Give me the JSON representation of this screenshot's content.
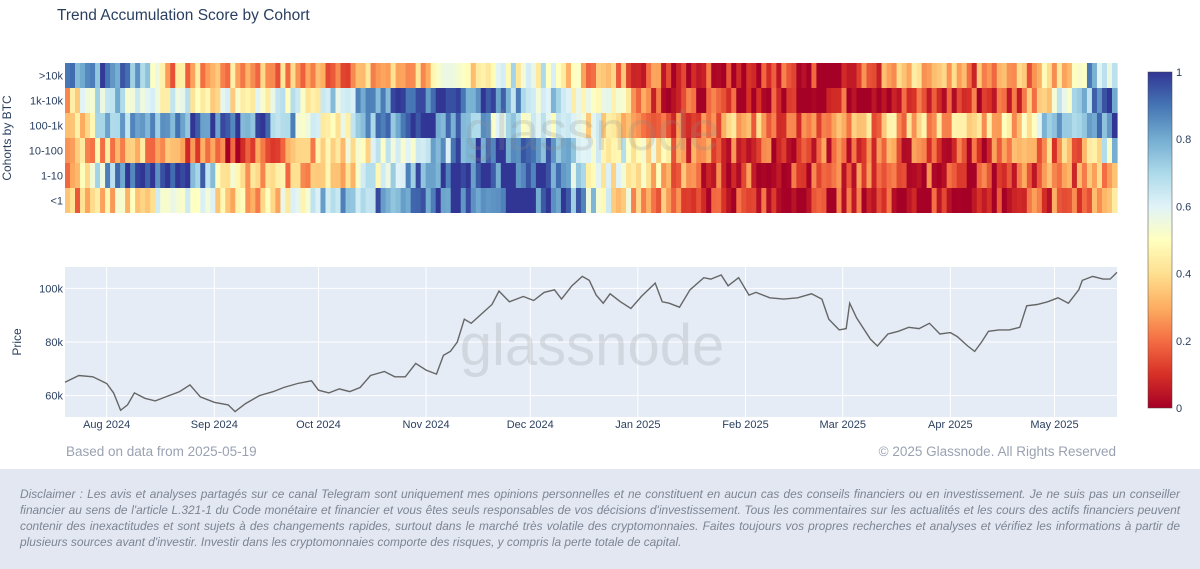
{
  "title": "Trend Accumulation Score by Cohort",
  "watermark": "glassnode",
  "footer": {
    "left": "Based on data from 2025-05-19",
    "right": "© 2025 Glassnode. All Rights Reserved"
  },
  "disclaimer": "Disclaimer : Les avis et analyses partagés sur ce canal Telegram sont uniquement mes opinions personnelles et ne constituent en aucun cas des conseils financiers ou en investissement. Je ne suis pas un conseiller financier au sens de l'article L.321-1 du Code monétaire et financier et vous êtes seuls responsables de vos décisions d'investissement. Tous les commentaires sur les actualités et les cours des actifs financiers peuvent contenir des inexactitudes et sont sujets à des changements rapides, surtout dans le marché très volatile des cryptomonnaies. Faites toujours vos propres recherches et analyses et vérifiez les informations à partir de plusieurs sources avant d'investir. Investir dans les cryptomonnaies comporte des risques, y compris la perte totale de capital.",
  "colors": {
    "heat_low": "#a50026",
    "heat_mid": "#ffffbf",
    "heat_high": "#313695",
    "price_line": "#666666",
    "plot_bg": "#e5ecf6"
  },
  "chart_data": [
    {
      "type": "heatmap",
      "ylabel": "Cohorts by BTC",
      "categories": [
        ">10k",
        "1k-10k",
        "100-1k",
        "10-100",
        "1-10",
        "<1"
      ],
      "x_range": [
        "2024-07-20",
        "2025-05-19"
      ],
      "segments_note": "score keyframes per cohort as [date, score]",
      "series": [
        {
          "name": ">10k",
          "keyframes": [
            [
              "2024-07-20",
              0.9
            ],
            [
              "2024-08-10",
              0.85
            ],
            [
              "2024-08-20",
              0.3
            ],
            [
              "2024-09-15",
              0.3
            ],
            [
              "2024-10-01",
              0.25
            ],
            [
              "2024-10-25",
              0.3
            ],
            [
              "2024-11-10",
              0.45
            ],
            [
              "2024-12-01",
              0.6
            ],
            [
              "2024-12-20",
              0.3
            ],
            [
              "2025-01-10",
              0.15
            ],
            [
              "2025-02-10",
              0.1
            ],
            [
              "2025-03-01",
              0.05
            ],
            [
              "2025-03-20",
              0.3
            ],
            [
              "2025-04-10",
              0.2
            ],
            [
              "2025-04-25",
              0.3
            ],
            [
              "2025-05-05",
              0.4
            ],
            [
              "2025-05-12",
              0.8
            ],
            [
              "2025-05-19",
              0.6
            ]
          ]
        },
        {
          "name": "1k-10k",
          "keyframes": [
            [
              "2024-07-20",
              0.3
            ],
            [
              "2024-08-01",
              0.7
            ],
            [
              "2024-09-01",
              0.5
            ],
            [
              "2024-10-01",
              0.55
            ],
            [
              "2024-10-25",
              0.95
            ],
            [
              "2024-11-10",
              0.95
            ],
            [
              "2024-11-25",
              0.8
            ],
            [
              "2024-12-10",
              0.6
            ],
            [
              "2024-12-25",
              0.55
            ],
            [
              "2025-01-10",
              0.1
            ],
            [
              "2025-02-10",
              0.05
            ],
            [
              "2025-03-10",
              0.1
            ],
            [
              "2025-04-01",
              0.1
            ],
            [
              "2025-04-20",
              0.15
            ],
            [
              "2025-05-01",
              0.55
            ],
            [
              "2025-05-10",
              0.8
            ],
            [
              "2025-05-19",
              0.95
            ]
          ]
        },
        {
          "name": "100-1k",
          "keyframes": [
            [
              "2024-07-20",
              0.15
            ],
            [
              "2024-08-01",
              0.7
            ],
            [
              "2024-08-20",
              0.9
            ],
            [
              "2024-09-15",
              0.9
            ],
            [
              "2024-10-05",
              0.5
            ],
            [
              "2024-10-25",
              0.95
            ],
            [
              "2024-11-10",
              0.85
            ],
            [
              "2024-11-25",
              0.6
            ],
            [
              "2024-12-10",
              0.55
            ],
            [
              "2024-12-25",
              0.45
            ],
            [
              "2025-01-10",
              0.2
            ],
            [
              "2025-02-01",
              0.3
            ],
            [
              "2025-02-20",
              0.15
            ],
            [
              "2025-03-10",
              0.3
            ],
            [
              "2025-04-01",
              0.35
            ],
            [
              "2025-04-20",
              0.4
            ],
            [
              "2025-05-01",
              0.75
            ],
            [
              "2025-05-19",
              0.95
            ]
          ]
        },
        {
          "name": "10-100",
          "keyframes": [
            [
              "2024-07-20",
              0.3
            ],
            [
              "2024-08-05",
              0.35
            ],
            [
              "2024-08-20",
              0.25
            ],
            [
              "2024-09-05",
              0.1
            ],
            [
              "2024-10-01",
              0.35
            ],
            [
              "2024-10-20",
              0.55
            ],
            [
              "2024-11-05",
              0.7
            ],
            [
              "2024-11-15",
              0.95
            ],
            [
              "2024-12-05",
              0.9
            ],
            [
              "2024-12-20",
              0.6
            ],
            [
              "2025-01-01",
              0.5
            ],
            [
              "2025-01-15",
              0.2
            ],
            [
              "2025-02-10",
              0.1
            ],
            [
              "2025-03-10",
              0.2
            ],
            [
              "2025-04-01",
              0.1
            ],
            [
              "2025-04-20",
              0.2
            ],
            [
              "2025-05-10",
              0.3
            ],
            [
              "2025-05-19",
              0.7
            ]
          ]
        },
        {
          "name": "1-10",
          "keyframes": [
            [
              "2024-07-20",
              0.3
            ],
            [
              "2024-08-05",
              0.9
            ],
            [
              "2024-08-25",
              0.95
            ],
            [
              "2024-09-10",
              0.3
            ],
            [
              "2024-10-05",
              0.35
            ],
            [
              "2024-10-20",
              0.65
            ],
            [
              "2024-11-05",
              0.95
            ],
            [
              "2024-12-05",
              0.95
            ],
            [
              "2024-12-20",
              0.5
            ],
            [
              "2025-01-05",
              0.4
            ],
            [
              "2025-01-20",
              0.15
            ],
            [
              "2025-02-20",
              0.1
            ],
            [
              "2025-03-20",
              0.15
            ],
            [
              "2025-04-10",
              0.1
            ],
            [
              "2025-05-01",
              0.2
            ],
            [
              "2025-05-19",
              0.3
            ]
          ]
        },
        {
          "name": "<1",
          "keyframes": [
            [
              "2024-07-20",
              0.25
            ],
            [
              "2024-08-05",
              0.45
            ],
            [
              "2024-08-25",
              0.5
            ],
            [
              "2024-09-15",
              0.35
            ],
            [
              "2024-10-05",
              0.75
            ],
            [
              "2024-10-25",
              0.85
            ],
            [
              "2024-11-05",
              0.95
            ],
            [
              "2024-12-10",
              0.95
            ],
            [
              "2024-12-25",
              0.5
            ],
            [
              "2025-01-10",
              0.2
            ],
            [
              "2025-02-10",
              0.05
            ],
            [
              "2025-03-10",
              0.1
            ],
            [
              "2025-04-10",
              0.05
            ],
            [
              "2025-05-01",
              0.15
            ],
            [
              "2025-05-19",
              0.35
            ]
          ]
        }
      ],
      "colorbar": {
        "ticks": [
          0,
          0.2,
          0.4,
          0.6,
          0.8,
          1
        ],
        "tick_labels": [
          "0",
          "0.2",
          "0.4",
          "0.6",
          "0.8",
          "1"
        ]
      }
    },
    {
      "type": "line",
      "ylabel": "Price",
      "ylim": [
        52000,
        108000
      ],
      "yticks": [
        60000,
        80000,
        100000
      ],
      "ytick_labels": [
        "60k",
        "80k",
        "100k"
      ],
      "x_range": [
        "2024-07-20",
        "2025-05-19"
      ],
      "x_ticks": [
        {
          "date": "2024-08-01",
          "label": "Aug 2024"
        },
        {
          "date": "2024-09-01",
          "label": "Sep 2024"
        },
        {
          "date": "2024-10-01",
          "label": "Oct 2024"
        },
        {
          "date": "2024-11-01",
          "label": "Nov 2024"
        },
        {
          "date": "2024-12-01",
          "label": "Dec 2024"
        },
        {
          "date": "2025-01-01",
          "label": "Jan 2025"
        },
        {
          "date": "2025-02-01",
          "label": "Feb 2025"
        },
        {
          "date": "2025-03-01",
          "label": "Mar 2025"
        },
        {
          "date": "2025-04-01",
          "label": "Apr 2025"
        },
        {
          "date": "2025-05-01",
          "label": "May 2025"
        }
      ],
      "points": [
        [
          "2024-07-20",
          65000
        ],
        [
          "2024-07-24",
          67500
        ],
        [
          "2024-07-28",
          67000
        ],
        [
          "2024-08-01",
          64500
        ],
        [
          "2024-08-03",
          61000
        ],
        [
          "2024-08-05",
          54500
        ],
        [
          "2024-08-07",
          56500
        ],
        [
          "2024-08-09",
          61000
        ],
        [
          "2024-08-12",
          59000
        ],
        [
          "2024-08-15",
          58000
        ],
        [
          "2024-08-18",
          59500
        ],
        [
          "2024-08-22",
          61500
        ],
        [
          "2024-08-25",
          64000
        ],
        [
          "2024-08-28",
          59500
        ],
        [
          "2024-09-01",
          57500
        ],
        [
          "2024-09-05",
          56500
        ],
        [
          "2024-09-07",
          54000
        ],
        [
          "2024-09-10",
          57000
        ],
        [
          "2024-09-14",
          60000
        ],
        [
          "2024-09-18",
          61500
        ],
        [
          "2024-09-21",
          63000
        ],
        [
          "2024-09-25",
          64500
        ],
        [
          "2024-09-29",
          65500
        ],
        [
          "2024-10-01",
          62000
        ],
        [
          "2024-10-04",
          61000
        ],
        [
          "2024-10-07",
          62500
        ],
        [
          "2024-10-10",
          61500
        ],
        [
          "2024-10-13",
          63000
        ],
        [
          "2024-10-16",
          67500
        ],
        [
          "2024-10-20",
          69000
        ],
        [
          "2024-10-23",
          67000
        ],
        [
          "2024-10-26",
          67000
        ],
        [
          "2024-10-29",
          72000
        ],
        [
          "2024-11-01",
          69500
        ],
        [
          "2024-11-04",
          68000
        ],
        [
          "2024-11-06",
          75000
        ],
        [
          "2024-11-08",
          76500
        ],
        [
          "2024-11-10",
          80000
        ],
        [
          "2024-11-12",
          88500
        ],
        [
          "2024-11-14",
          87000
        ],
        [
          "2024-11-17",
          90500
        ],
        [
          "2024-11-20",
          94000
        ],
        [
          "2024-11-22",
          99000
        ],
        [
          "2024-11-25",
          95000
        ],
        [
          "2024-11-27",
          96000
        ],
        [
          "2024-11-29",
          97000
        ],
        [
          "2024-12-02",
          95500
        ],
        [
          "2024-12-05",
          98500
        ],
        [
          "2024-12-08",
          99500
        ],
        [
          "2024-12-10",
          96000
        ],
        [
          "2024-12-13",
          101000
        ],
        [
          "2024-12-16",
          104500
        ],
        [
          "2024-12-18",
          103000
        ],
        [
          "2024-12-20",
          97500
        ],
        [
          "2024-12-22",
          94500
        ],
        [
          "2024-12-24",
          98000
        ],
        [
          "2024-12-27",
          95000
        ],
        [
          "2024-12-30",
          92500
        ],
        [
          "2025-01-02",
          97000
        ],
        [
          "2025-01-06",
          102000
        ],
        [
          "2025-01-08",
          95000
        ],
        [
          "2025-01-10",
          94500
        ],
        [
          "2025-01-13",
          93000
        ],
        [
          "2025-01-16",
          99500
        ],
        [
          "2025-01-20",
          104000
        ],
        [
          "2025-01-22",
          103500
        ],
        [
          "2025-01-25",
          105000
        ],
        [
          "2025-01-27",
          101000
        ],
        [
          "2025-01-30",
          104000
        ],
        [
          "2025-02-02",
          97500
        ],
        [
          "2025-02-04",
          98500
        ],
        [
          "2025-02-08",
          96500
        ],
        [
          "2025-02-12",
          96000
        ],
        [
          "2025-02-16",
          96500
        ],
        [
          "2025-02-20",
          98000
        ],
        [
          "2025-02-23",
          96000
        ],
        [
          "2025-02-25",
          88500
        ],
        [
          "2025-02-28",
          84500
        ],
        [
          "2025-03-02",
          85000
        ],
        [
          "2025-03-03",
          94500
        ],
        [
          "2025-03-05",
          89000
        ],
        [
          "2025-03-09",
          81000
        ],
        [
          "2025-03-11",
          78500
        ],
        [
          "2025-03-14",
          83000
        ],
        [
          "2025-03-17",
          84000
        ],
        [
          "2025-03-20",
          85500
        ],
        [
          "2025-03-23",
          85000
        ],
        [
          "2025-03-26",
          87000
        ],
        [
          "2025-03-29",
          83000
        ],
        [
          "2025-04-01",
          83500
        ],
        [
          "2025-04-03",
          82000
        ],
        [
          "2025-04-06",
          78500
        ],
        [
          "2025-04-08",
          76500
        ],
        [
          "2025-04-10",
          80000
        ],
        [
          "2025-04-12",
          84000
        ],
        [
          "2025-04-15",
          84500
        ],
        [
          "2025-04-18",
          84500
        ],
        [
          "2025-04-21",
          85500
        ],
        [
          "2025-04-23",
          93500
        ],
        [
          "2025-04-26",
          94000
        ],
        [
          "2025-04-29",
          95000
        ],
        [
          "2025-05-02",
          96500
        ],
        [
          "2025-05-05",
          94500
        ],
        [
          "2025-05-08",
          99500
        ],
        [
          "2025-05-09",
          103000
        ],
        [
          "2025-05-12",
          104500
        ],
        [
          "2025-05-15",
          103500
        ],
        [
          "2025-05-17",
          103500
        ],
        [
          "2025-05-19",
          106000
        ]
      ]
    }
  ]
}
